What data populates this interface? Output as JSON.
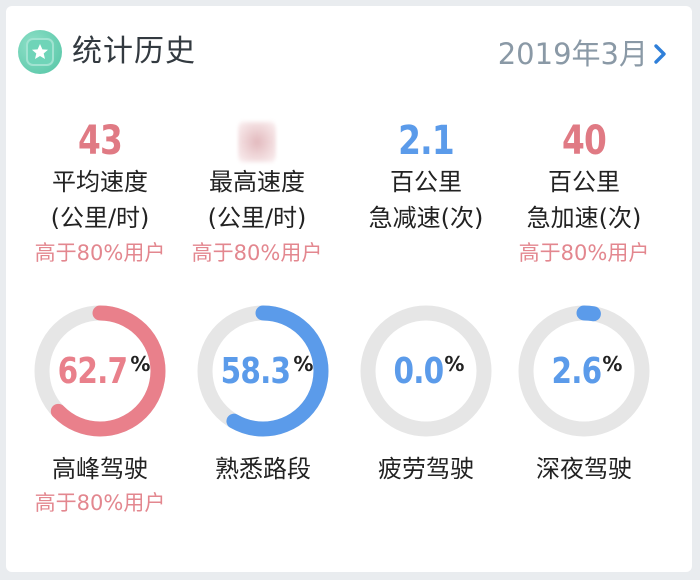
{
  "header": {
    "title": "统计历史",
    "month": "2019年3月"
  },
  "stats": [
    {
      "value": "43",
      "label1": "平均速度",
      "label2": "(公里/时)",
      "compare": "高于80%用户",
      "color": "#e07a84",
      "blurred": false
    },
    {
      "value": "",
      "label1": "最高速度",
      "label2": "(公里/时)",
      "compare": "高于80%用户",
      "color": "#e07a84",
      "blurred": true
    },
    {
      "value": "2.1",
      "label1": "百公里",
      "label2": "急减速(次)",
      "compare": "",
      "color": "#5b9bea",
      "blurred": false
    },
    {
      "value": "40",
      "label1": "百公里",
      "label2": "急加速(次)",
      "compare": "高于80%用户",
      "color": "#e07a84",
      "blurred": false
    }
  ],
  "rings": [
    {
      "value": "62.7",
      "percent": 62.7,
      "unit": "%",
      "label": "高峰驾驶",
      "compare": "高于80%用户",
      "color": "#e9808b"
    },
    {
      "value": "58.3",
      "percent": 58.3,
      "unit": "%",
      "label": "熟悉路段",
      "compare": "",
      "color": "#5b9bea"
    },
    {
      "value": "0.0",
      "percent": 0.0,
      "unit": "%",
      "label": "疲劳驾驶",
      "compare": "",
      "color": "#5b9bea"
    },
    {
      "value": "2.6",
      "percent": 2.6,
      "unit": "%",
      "label": "深夜驾驶",
      "compare": "",
      "color": "#5b9bea"
    }
  ],
  "colors": {
    "ring_track": "#e6e6e6",
    "compare_text": "#e3878f",
    "accent_blue": "#2f7fd9"
  },
  "icons": {
    "title_icon": "star-badge-icon",
    "next_icon": "chevron-right-icon"
  }
}
